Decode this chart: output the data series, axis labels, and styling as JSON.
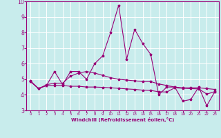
{
  "title": "",
  "xlabel": "Windchill (Refroidissement éolien,°C)",
  "bg_color": "#c8ecec",
  "grid_color": "#b0dede",
  "line_color": "#990077",
  "xlim": [
    -0.5,
    23.5
  ],
  "ylim": [
    3,
    10
  ],
  "yticks": [
    3,
    4,
    5,
    6,
    7,
    8,
    9,
    10
  ],
  "xticks": [
    0,
    1,
    2,
    3,
    4,
    5,
    6,
    7,
    8,
    9,
    10,
    11,
    12,
    13,
    14,
    15,
    16,
    17,
    18,
    19,
    20,
    21,
    22,
    23
  ],
  "line1_x": [
    0,
    1,
    2,
    3,
    4,
    5,
    6,
    7,
    8,
    9,
    10,
    11,
    12,
    13,
    14,
    15,
    16,
    17,
    18,
    19,
    20,
    21,
    22,
    23
  ],
  "line1_y": [
    4.9,
    4.4,
    4.6,
    5.5,
    4.65,
    5.5,
    5.5,
    5.0,
    6.0,
    6.5,
    8.0,
    9.75,
    6.3,
    8.2,
    7.3,
    6.6,
    4.0,
    4.5,
    4.5,
    3.6,
    3.7,
    4.5,
    3.3,
    4.2
  ],
  "line2_x": [
    0,
    1,
    2,
    3,
    4,
    5,
    6,
    7,
    8,
    9,
    10,
    11,
    12,
    13,
    14,
    15,
    16,
    17,
    18,
    19,
    20,
    21,
    22,
    23
  ],
  "line2_y": [
    4.85,
    4.4,
    4.65,
    4.75,
    4.75,
    5.2,
    5.4,
    5.5,
    5.4,
    5.25,
    5.1,
    5.0,
    4.95,
    4.9,
    4.85,
    4.85,
    4.7,
    4.6,
    4.5,
    4.45,
    4.45,
    4.45,
    4.4,
    4.35
  ],
  "line3_x": [
    0,
    1,
    2,
    3,
    4,
    5,
    6,
    7,
    8,
    9,
    10,
    11,
    12,
    13,
    14,
    15,
    16,
    17,
    18,
    19,
    20,
    21,
    22,
    23
  ],
  "line3_y": [
    4.85,
    4.4,
    4.6,
    4.6,
    4.6,
    4.55,
    4.55,
    4.5,
    4.5,
    4.48,
    4.45,
    4.42,
    4.38,
    4.35,
    4.3,
    4.28,
    4.2,
    4.18,
    4.45,
    4.42,
    4.4,
    4.38,
    4.05,
    4.2
  ]
}
